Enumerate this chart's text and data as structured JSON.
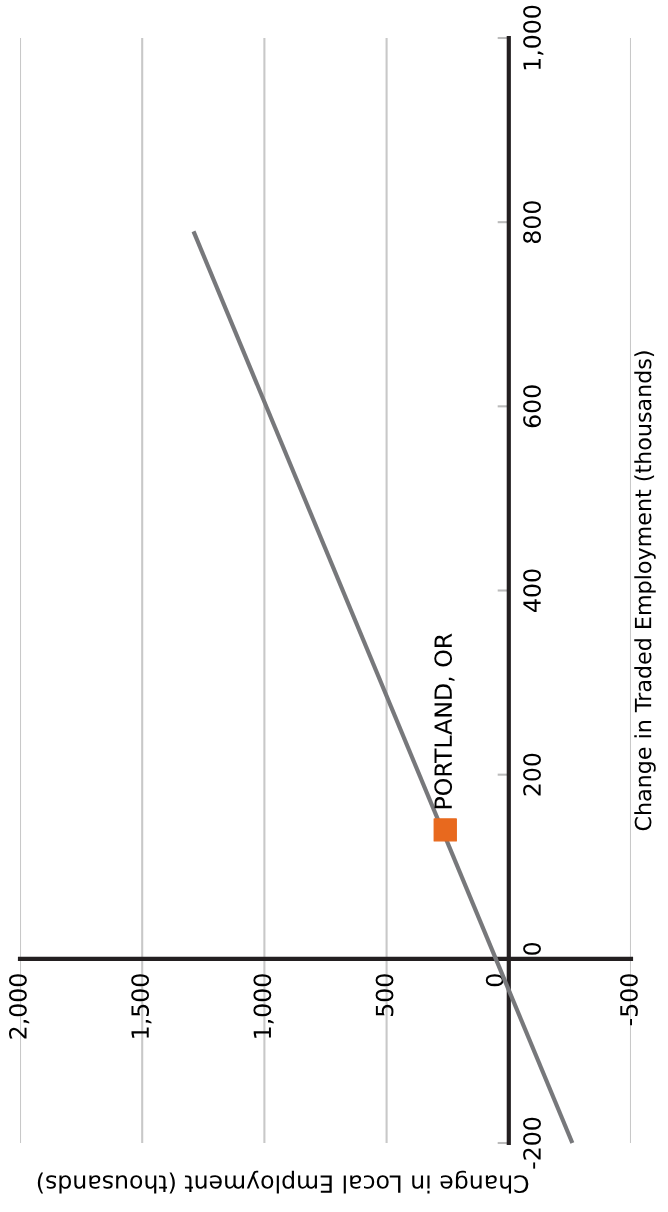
{
  "chart_data": {
    "type": "line",
    "xlabel": "Change in Local Employment (thousands)",
    "ylabel": "Change in Traded Employment (thousands)",
    "xlim": [
      2000,
      -500
    ],
    "xticks": [
      {
        "value": 2000,
        "label": "2,000"
      },
      {
        "value": 1500,
        "label": "1,500"
      },
      {
        "value": 1000,
        "label": "1,000"
      },
      500,
      0,
      -500
    ],
    "ylim": [
      -200,
      1000
    ],
    "yticks": [
      -200,
      0,
      200,
      400,
      600,
      800,
      {
        "value": 1000,
        "label": "1,000"
      }
    ],
    "grid": "x",
    "series": [
      {
        "color": "#77787b",
        "x": [
          -260,
          1290
        ],
        "values": [
          -200,
          790
        ]
      },
      {
        "type": "scatter",
        "color": "#e8691e",
        "marker": "square",
        "x": [
          260
        ],
        "values": [
          140
        ]
      }
    ],
    "annotations": [
      {
        "text": "PORTLAND, OR",
        "x": 260,
        "y": 140
      }
    ]
  }
}
